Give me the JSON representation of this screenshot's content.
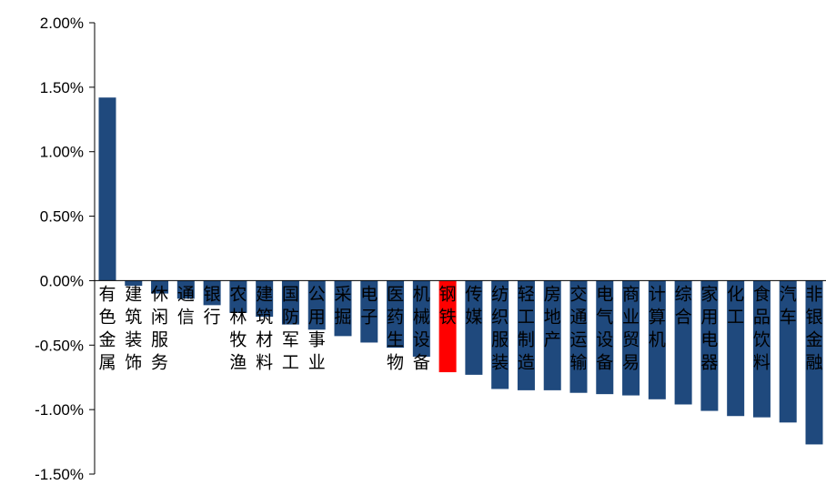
{
  "chart_data": {
    "type": "bar",
    "title": "",
    "xlabel": "",
    "ylabel": "",
    "ylim": [
      -1.5,
      2.0
    ],
    "yticks": [
      2.0,
      1.5,
      1.0,
      0.5,
      0.0,
      -0.5,
      -1.0,
      -1.5
    ],
    "ytick_labels": [
      "2.00%",
      "1.50%",
      "1.00%",
      "0.50%",
      "0.00%",
      "-0.50%",
      "-1.00%",
      "-1.50%"
    ],
    "grid": false,
    "legend": "none",
    "bar_color": "#1F497D",
    "highlight_color": "#FF0000",
    "highlight_category": "钢铁",
    "categories": [
      "有色金属",
      "建筑装饰",
      "休闲服务",
      "通信",
      "银行",
      "农林牧渔",
      "建筑材料",
      "国防军工",
      "公用事业",
      "采掘",
      "电子",
      "医药生物",
      "机械设备",
      "钢铁",
      "传媒",
      "纺织服装",
      "轻工制造",
      "房地产",
      "交通运输",
      "电气设备",
      "商业贸易",
      "计算机",
      "综合",
      "家用电器",
      "化工",
      "食品饮料",
      "汽车",
      "非银金融"
    ],
    "values": [
      1.42,
      -0.04,
      -0.1,
      -0.14,
      -0.19,
      -0.25,
      -0.28,
      -0.34,
      -0.38,
      -0.43,
      -0.48,
      -0.52,
      -0.59,
      -0.71,
      -0.73,
      -0.84,
      -0.85,
      -0.85,
      -0.87,
      -0.88,
      -0.89,
      -0.92,
      -0.96,
      -1.01,
      -1.05,
      -1.06,
      -1.1,
      -1.27
    ]
  }
}
